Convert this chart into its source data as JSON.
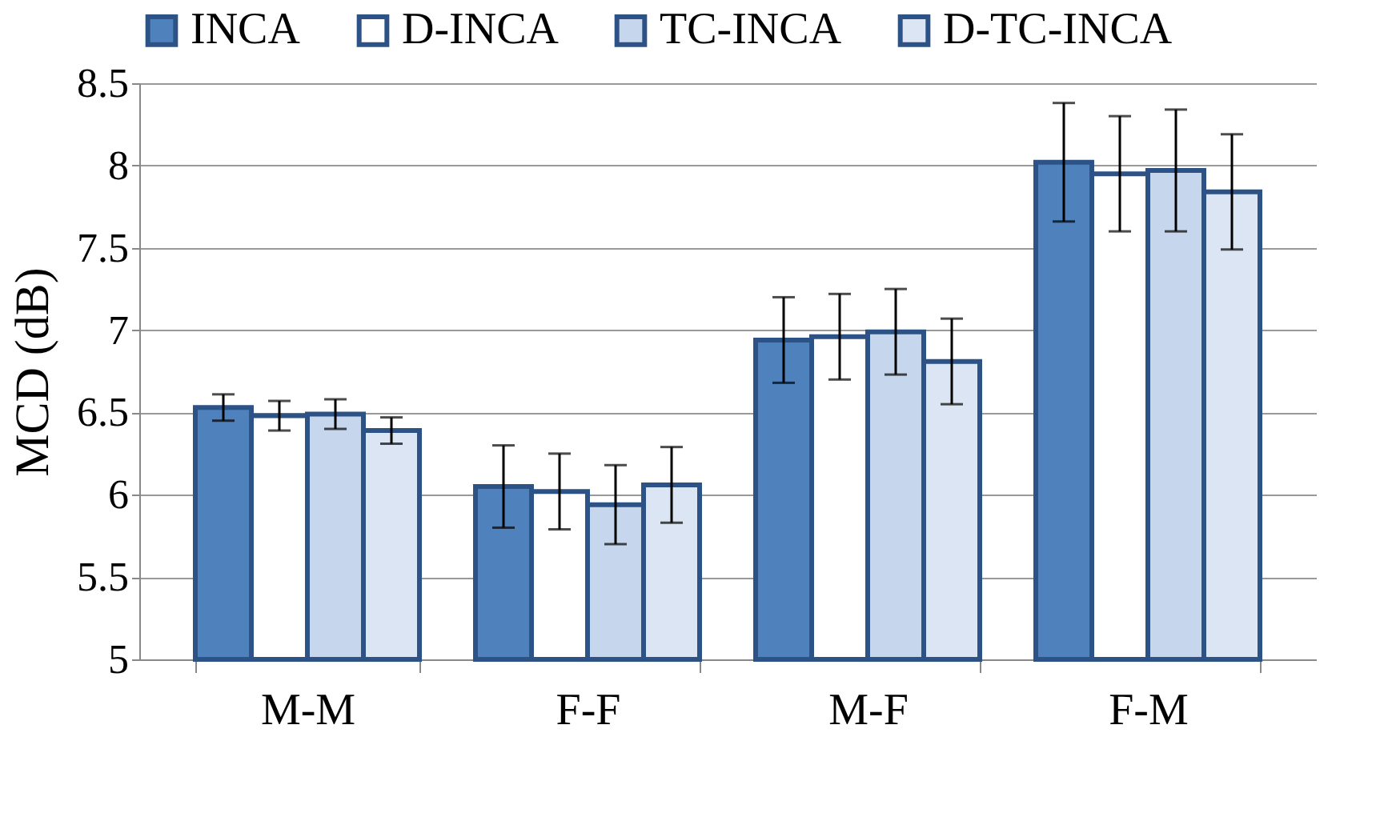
{
  "chart_data": {
    "type": "bar",
    "ylabel": "MCD (dB)",
    "categories": [
      "M-M",
      "F-F",
      "M-F",
      "F-M"
    ],
    "series": [
      {
        "name": "INCA",
        "color": "#4f81bd",
        "values": [
          6.53,
          6.05,
          6.94,
          8.02
        ],
        "errors": [
          0.08,
          0.25,
          0.26,
          0.36
        ]
      },
      {
        "name": "D-INCA",
        "color": "#ffffff",
        "values": [
          6.48,
          6.02,
          6.96,
          7.95
        ],
        "errors": [
          0.09,
          0.23,
          0.26,
          0.35
        ]
      },
      {
        "name": "TC-INCA",
        "color": "#c6d6ec",
        "values": [
          6.49,
          5.94,
          6.99,
          7.97
        ],
        "errors": [
          0.09,
          0.24,
          0.26,
          0.37
        ]
      },
      {
        "name": "D-TC-INCA",
        "color": "#dbe5f3",
        "values": [
          6.39,
          6.06,
          6.81,
          7.84
        ],
        "errors": [
          0.08,
          0.23,
          0.26,
          0.35
        ]
      }
    ],
    "ylim": [
      5,
      8.5
    ],
    "yticks": [
      5,
      5.5,
      6,
      6.5,
      7,
      7.5,
      8,
      8.5
    ],
    "grid": "y",
    "legend": "top"
  }
}
